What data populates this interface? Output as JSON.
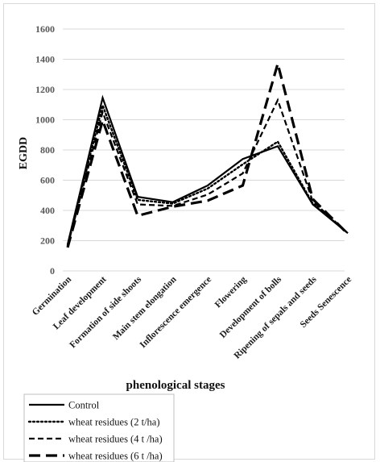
{
  "chart_data": {
    "type": "line",
    "ylabel": "EGDD",
    "xlabel": "phenological stages",
    "ylim": [
      0,
      1600
    ],
    "yticks": [
      0,
      200,
      400,
      600,
      800,
      1000,
      1200,
      1400,
      1600
    ],
    "grid": true,
    "legend_position": "bottom-left",
    "categories": [
      "Germination",
      "Leaf development",
      "Formation of side shoots",
      "Main stem elongation",
      "Inflorescence emergence",
      "Flowering",
      "Development of bolls",
      "Ripening of sepals and seeds",
      "Seeds Senescence"
    ],
    "series": [
      {
        "name": "Control",
        "style": "solid",
        "values": [
          175,
          1145,
          490,
          455,
          565,
          740,
          825,
          440,
          250
        ]
      },
      {
        "name": "wheat residues (2 t/ha)",
        "style": "dotted",
        "values": [
          170,
          1095,
          470,
          445,
          545,
          705,
          855,
          445,
          250
        ]
      },
      {
        "name": "wheat residues (4 t /ha)",
        "style": "dashed",
        "values": [
          165,
          1050,
          440,
          430,
          505,
          645,
          1130,
          460,
          250
        ]
      },
      {
        "name": "wheat residues (6 t /ha)",
        "style": "longdash",
        "values": [
          155,
          995,
          365,
          425,
          465,
          565,
          1370,
          475,
          245
        ]
      }
    ]
  },
  "colors": {
    "line": "#000000",
    "grid": "#d9d9d9",
    "tick": "#595959"
  }
}
